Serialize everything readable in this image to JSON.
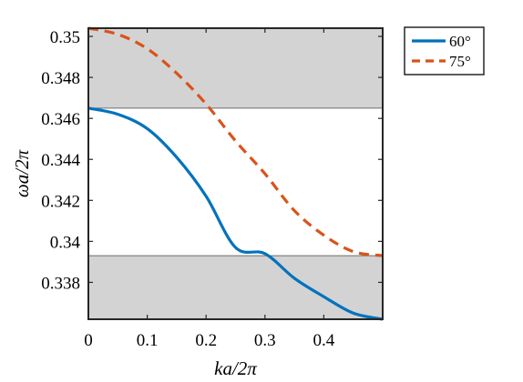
{
  "chart_data": {
    "type": "line",
    "xlabel": "ka/2π",
    "ylabel": "ωa/2π",
    "xlim": [
      0,
      0.5
    ],
    "ylim": [
      0.3362,
      0.3504
    ],
    "x_ticks": [
      0,
      0.1,
      0.2,
      0.3,
      0.4
    ],
    "x_tick_labels": [
      "0",
      "0.1",
      "0.2",
      "0.3",
      "0.4"
    ],
    "y_ticks": [
      0.338,
      0.34,
      0.342,
      0.344,
      0.346,
      0.348,
      0.35
    ],
    "y_tick_labels": [
      "0.338",
      "0.34",
      "0.342",
      "0.344",
      "0.346",
      "0.348",
      "0.35"
    ],
    "grid": false,
    "legend_position": "outside-top-right",
    "shaded_bands": [
      {
        "y_from": 0.3465,
        "y_to": 0.3504,
        "color": "#d3d3d3"
      },
      {
        "y_from": 0.3362,
        "y_to": 0.3393,
        "color": "#d3d3d3"
      }
    ],
    "series": [
      {
        "name": "60°",
        "color": "#0072bd",
        "style": "solid",
        "x": [
          0,
          0.05,
          0.1,
          0.15,
          0.2,
          0.25,
          0.3,
          0.35,
          0.4,
          0.45,
          0.5
        ],
        "y": [
          0.3465,
          0.3462,
          0.3455,
          0.3441,
          0.3422,
          0.3397,
          0.3394,
          0.3382,
          0.3373,
          0.3365,
          0.3362
        ]
      },
      {
        "name": "75°",
        "color": "#d95319",
        "style": "dashed",
        "x": [
          0,
          0.05,
          0.1,
          0.15,
          0.2,
          0.25,
          0.3,
          0.35,
          0.4,
          0.45,
          0.5
        ],
        "y": [
          0.3504,
          0.3501,
          0.3494,
          0.3482,
          0.3467,
          0.3449,
          0.3433,
          0.3415,
          0.3403,
          0.3395,
          0.3393
        ]
      }
    ]
  }
}
